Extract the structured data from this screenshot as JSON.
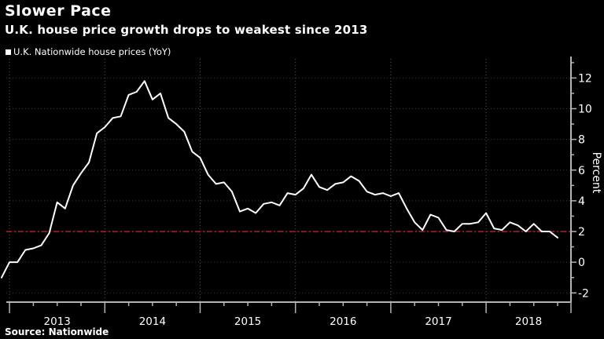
{
  "header": {
    "title": "Slower Pace",
    "subtitle": "U.K. house price growth drops to weakest since 2013"
  },
  "legend": {
    "label": "U.K. Nationwide house prices (YoY)",
    "marker": "white-square"
  },
  "footer": {
    "source": "Source: Nationwide"
  },
  "chart_data": {
    "type": "line",
    "title": "Slower Pace",
    "subtitle": "U.K. house price growth drops to weakest since 2013",
    "ylabel": "Percent",
    "xlabel": "",
    "x_tick_years": [
      "2013",
      "2014",
      "2015",
      "2016",
      "2017",
      "2018"
    ],
    "yticks": [
      -2,
      0,
      2,
      4,
      6,
      8,
      10,
      12
    ],
    "ylim": [
      -2.6,
      13.4
    ],
    "grid": "dotted",
    "legend_position": "top-left",
    "series": [
      {
        "name": "U.K. Nationwide house prices (YoY)",
        "color": "#ffffff",
        "frequency": "monthly",
        "start": "2012-12",
        "end": "2018-10",
        "values": [
          -1.0,
          0.0,
          0.0,
          0.8,
          0.9,
          1.1,
          1.9,
          3.9,
          3.5,
          5.0,
          5.8,
          6.5,
          8.4,
          8.8,
          9.4,
          9.5,
          10.9,
          11.1,
          11.8,
          10.6,
          11.0,
          9.4,
          9.0,
          8.5,
          7.2,
          6.8,
          5.7,
          5.1,
          5.2,
          4.6,
          3.3,
          3.5,
          3.2,
          3.8,
          3.9,
          3.7,
          4.5,
          4.4,
          4.8,
          5.7,
          4.9,
          4.7,
          5.1,
          5.2,
          5.6,
          5.3,
          4.6,
          4.4,
          4.5,
          4.3,
          4.5,
          3.5,
          2.6,
          2.1,
          3.1,
          2.9,
          2.1,
          2.0,
          2.5,
          2.5,
          2.6,
          3.2,
          2.2,
          2.1,
          2.6,
          2.4,
          2.0,
          2.5,
          2.0,
          2.0,
          1.6
        ]
      }
    ],
    "reference_line": {
      "value": 2.0,
      "style": "dash-dot",
      "color": "#c51f33"
    },
    "colors": {
      "background": "#000000",
      "line": "#ffffff",
      "reference": "#c51f33",
      "grid_h": "#3c3c3c",
      "grid_v": "#555555",
      "axis": "#b3b3b3",
      "text": "#ffffff"
    }
  }
}
